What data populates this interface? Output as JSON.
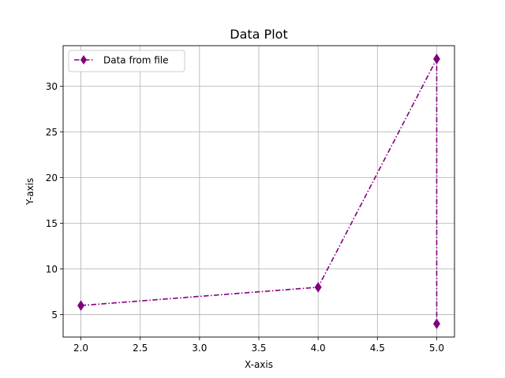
{
  "chart_data": {
    "type": "line",
    "title": "Data Plot",
    "xlabel": "X-axis",
    "ylabel": "Y-axis",
    "xlim": [
      1.85,
      5.15
    ],
    "ylim": [
      2.55,
      34.45
    ],
    "xticks": [
      2.0,
      2.5,
      3.0,
      3.5,
      4.0,
      4.5,
      5.0
    ],
    "xtick_labels": [
      "2.0",
      "2.5",
      "3.0",
      "3.5",
      "4.0",
      "4.5",
      "5.0"
    ],
    "yticks": [
      5,
      10,
      15,
      20,
      25,
      30
    ],
    "ytick_labels": [
      "5",
      "10",
      "15",
      "20",
      "25",
      "30"
    ],
    "grid": true,
    "legend_position": "upper-left",
    "series": [
      {
        "name": "Data from file",
        "color": "#800080",
        "marker": "diamond",
        "line_style": "dash-dot",
        "x": [
          2,
          4,
          5,
          5
        ],
        "y": [
          6,
          8,
          33,
          4
        ]
      }
    ]
  }
}
